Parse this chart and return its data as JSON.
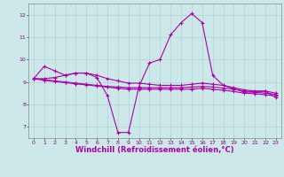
{
  "title": "",
  "xlabel": "Windchill (Refroidissement éolien,°C)",
  "ylabel": "",
  "background_color": "#cce8e8",
  "grid_color": "#aacccc",
  "line_color": "#aa00aa",
  "xlim": [
    -0.5,
    23.5
  ],
  "ylim": [
    6.5,
    12.5
  ],
  "xticks": [
    0,
    1,
    2,
    3,
    4,
    5,
    6,
    7,
    8,
    9,
    10,
    11,
    12,
    13,
    14,
    15,
    16,
    17,
    18,
    19,
    20,
    21,
    22,
    23
  ],
  "yticks": [
    7,
    8,
    9,
    10,
    11,
    12
  ],
  "series": [
    [
      9.15,
      9.7,
      9.5,
      9.3,
      9.4,
      9.4,
      9.2,
      8.4,
      6.75,
      6.75,
      8.8,
      9.85,
      10.0,
      11.1,
      11.65,
      12.05,
      11.65,
      9.3,
      8.85,
      8.7,
      8.55,
      8.55,
      8.6,
      8.3
    ],
    [
      9.15,
      9.15,
      9.2,
      9.3,
      9.4,
      9.4,
      9.3,
      9.15,
      9.05,
      8.95,
      8.95,
      8.9,
      8.85,
      8.85,
      8.85,
      8.9,
      8.95,
      8.9,
      8.85,
      8.75,
      8.65,
      8.6,
      8.6,
      8.5
    ],
    [
      9.15,
      9.1,
      9.05,
      9.0,
      8.95,
      8.9,
      8.85,
      8.8,
      8.78,
      8.75,
      8.75,
      8.75,
      8.75,
      8.75,
      8.75,
      8.78,
      8.8,
      8.78,
      8.73,
      8.68,
      8.6,
      8.55,
      8.5,
      8.45
    ],
    [
      9.15,
      9.08,
      9.02,
      8.97,
      8.92,
      8.87,
      8.82,
      8.77,
      8.72,
      8.68,
      8.68,
      8.68,
      8.68,
      8.68,
      8.68,
      8.68,
      8.72,
      8.68,
      8.63,
      8.58,
      8.5,
      8.48,
      8.43,
      8.38
    ]
  ],
  "marker": "+",
  "markersize": 3.5,
  "markeredgewidth": 0.8,
  "linewidth": 0.8,
  "tick_fontsize": 4.5,
  "xlabel_fontsize": 6.0
}
